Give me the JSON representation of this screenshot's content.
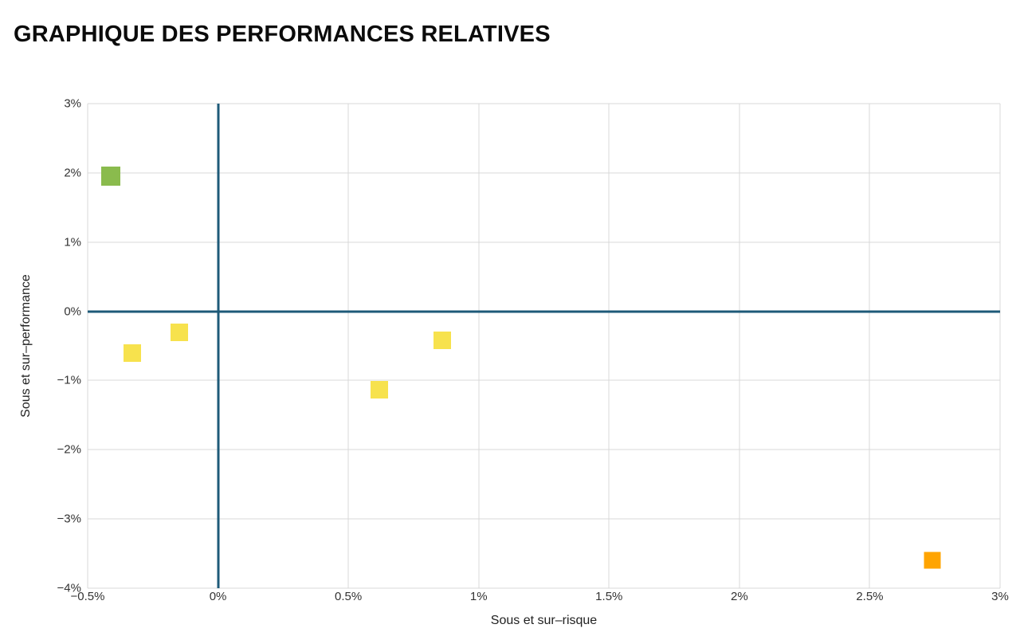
{
  "chart_data": {
    "type": "scatter",
    "title": "GRAPHIQUE DES PERFORMANCES RELATIVES",
    "xlabel": "Sous et sur–risque",
    "ylabel": "Sous et sur–performance",
    "xlim": [
      -0.5,
      3
    ],
    "ylim": [
      -4,
      3
    ],
    "grid": true,
    "legend": "none",
    "grid_color": "#d8d8d8",
    "axis_color": "#1e5a78",
    "x_ticks": [
      {
        "value": -0.5,
        "label": "−0.5%"
      },
      {
        "value": 0,
        "label": "0%"
      },
      {
        "value": 0.5,
        "label": "0.5%"
      },
      {
        "value": 1,
        "label": "1%"
      },
      {
        "value": 1.5,
        "label": "1.5%"
      },
      {
        "value": 2,
        "label": "2%"
      },
      {
        "value": 2.5,
        "label": "2.5%"
      },
      {
        "value": 3,
        "label": "3%"
      }
    ],
    "y_ticks": [
      {
        "value": 3,
        "label": "3%"
      },
      {
        "value": 2,
        "label": "2%"
      },
      {
        "value": 1,
        "label": "1%"
      },
      {
        "value": 0,
        "label": "0%"
      },
      {
        "value": -1,
        "label": "−1%"
      },
      {
        "value": -2,
        "label": "−2%"
      },
      {
        "value": -3,
        "label": "−3%"
      },
      {
        "value": -4,
        "label": "−4%"
      }
    ],
    "points": [
      {
        "x": -0.41,
        "y": 1.95,
        "color": "#8abb4d",
        "size": 24,
        "name": "scatter-point-green"
      },
      {
        "x": -0.33,
        "y": -0.6,
        "color": "#f7e24d",
        "size": 22,
        "name": "scatter-point-yellow"
      },
      {
        "x": -0.15,
        "y": -0.3,
        "color": "#f7e24d",
        "size": 22,
        "name": "scatter-point-yellow"
      },
      {
        "x": 0.62,
        "y": -1.13,
        "color": "#f7e24d",
        "size": 22,
        "name": "scatter-point-yellow"
      },
      {
        "x": 0.86,
        "y": -0.42,
        "color": "#f7e24d",
        "size": 22,
        "name": "scatter-point-yellow"
      },
      {
        "x": 2.74,
        "y": -3.6,
        "color": "#ffa400",
        "size": 21,
        "name": "scatter-point-orange"
      }
    ]
  }
}
